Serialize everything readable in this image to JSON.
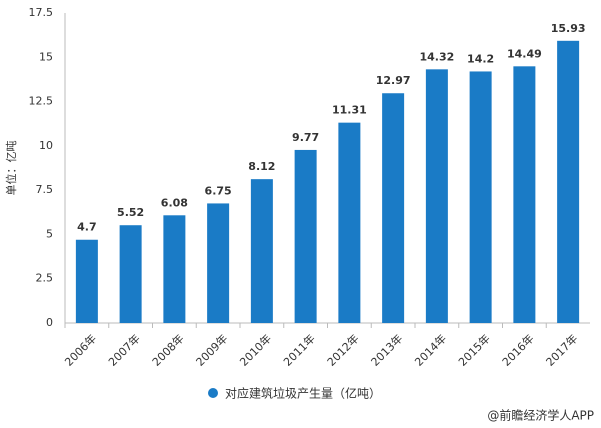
{
  "chart_data": {
    "type": "bar",
    "y_label": "单位：亿吨",
    "categories": [
      "2006年",
      "2007年",
      "2008年",
      "2009年",
      "2010年",
      "2011年",
      "2012年",
      "2013年",
      "2014年",
      "2015年",
      "2016年",
      "2017年"
    ],
    "series": [
      {
        "name": "对应建筑垃圾产生量（亿吨）",
        "color": "#1a7bc6",
        "values": [
          4.7,
          5.52,
          6.08,
          6.75,
          8.12,
          9.77,
          11.31,
          12.97,
          14.32,
          14.2,
          14.49,
          15.93
        ]
      }
    ],
    "ylim": [
      0,
      17.5
    ],
    "yticks": [
      0,
      2.5,
      5,
      7.5,
      10,
      12.5,
      15,
      17.5
    ],
    "grid": false,
    "source": "@前瞻经济学人APP"
  }
}
